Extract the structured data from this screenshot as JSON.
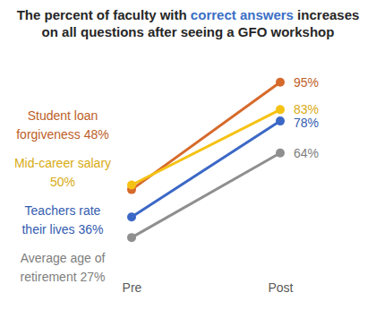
{
  "chart_data": {
    "type": "line",
    "title": [
      "The percent of faculty with ",
      "correct answers",
      " increases on all questions after seeing a GFO workshop"
    ],
    "categories": [
      "Pre",
      "Post"
    ],
    "series": [
      {
        "name": "Student loan forgiveness",
        "color": "#d66a2c",
        "values": [
          48,
          95
        ],
        "value_labels": [
          "48%",
          "95%"
        ]
      },
      {
        "name": "Mid-career salary",
        "color": "#f5c214",
        "values": [
          50,
          83
        ],
        "value_labels": [
          "50%",
          "83%"
        ]
      },
      {
        "name": "Teachers rate their lives",
        "color": "#3b68c6",
        "values": [
          36,
          78
        ],
        "value_labels": [
          "36%",
          "78%"
        ]
      },
      {
        "name": "Average age of retirement",
        "color": "#8f8f8f",
        "values": [
          27,
          64
        ],
        "value_labels": [
          "27%",
          "64%"
        ]
      }
    ],
    "ylim": [
      0,
      100
    ],
    "tick_labels": "x",
    "data_labels": true,
    "marker": "circle"
  }
}
